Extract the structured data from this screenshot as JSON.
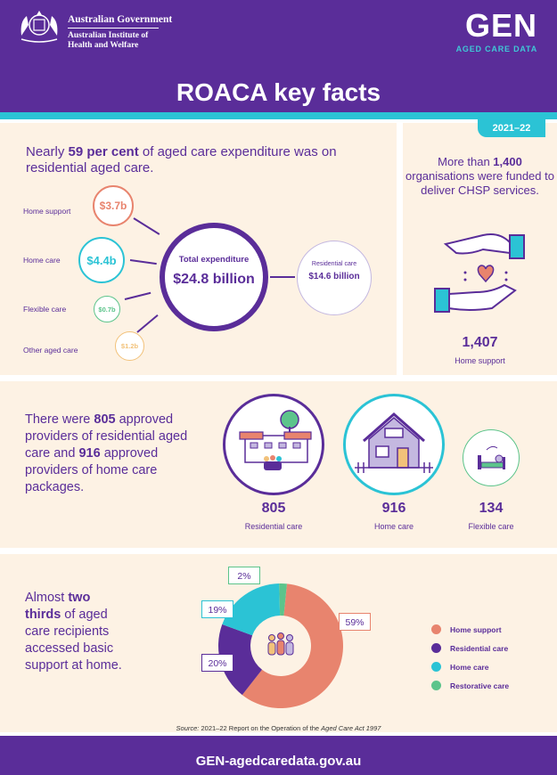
{
  "header": {
    "gov_line1": "Australian Government",
    "gov_line2": "Australian Institute of Health and Welfare",
    "logo": "GEN",
    "logo_sub": "AGED CARE DATA",
    "title": "ROACA key facts",
    "year": "2021–22"
  },
  "expenditure": {
    "intro_a": "Nearly ",
    "intro_b": "59 per cent",
    "intro_c": " of aged care expenditure was on residential aged care.",
    "items": [
      {
        "label": "Home support",
        "value": "$3.7b",
        "color": "#e8846e"
      },
      {
        "label": "Home care",
        "value": "$4.4b",
        "color": "#2bc3d5"
      },
      {
        "label": "Flexible care",
        "value": "$0.7b",
        "color": "#5cc48b"
      },
      {
        "label": "Other aged care",
        "value": "$1.2b",
        "color": "#f2c27a"
      }
    ],
    "total_label": "Total expenditure",
    "total_value": "$24.8 billion",
    "residential_label": "Residential care",
    "residential_value": "$14.6 billion"
  },
  "chsp": {
    "text_a": "More than ",
    "text_b": "1,400",
    "text_c": " organisations were funded to deliver CHSP services.",
    "number": "1,407",
    "label": "Home support"
  },
  "providers": {
    "text_a": "There were ",
    "text_b": "805",
    "text_c": " approved providers of residential aged care and ",
    "text_d": "916",
    "text_e": " approved providers of home care packages.",
    "stats": [
      {
        "number": "805",
        "label": "Residential care",
        "color": "#5a2d99"
      },
      {
        "number": "916",
        "label": "Home care",
        "color": "#2bc3d5"
      },
      {
        "number": "134",
        "label": "Flexible care",
        "color": "#5cc48b"
      }
    ]
  },
  "recipients": {
    "text_a": "Almost ",
    "text_b": "two thirds",
    "text_c": " of aged care recipients accessed basic support at home."
  },
  "chart_data": {
    "type": "pie",
    "categories": [
      "Home support",
      "Residential care",
      "Home care",
      "Restorative care"
    ],
    "values": [
      59,
      20,
      19,
      2
    ],
    "labels": [
      "59%",
      "20%",
      "19%",
      "2%"
    ],
    "colors": [
      "#e8846e",
      "#5a2d99",
      "#2bc3d5",
      "#5cc48b"
    ],
    "legend_position": "right"
  },
  "source": {
    "prefix": "Source:",
    "text": " 2021–22 Report on the Operation of the ",
    "act": "Aged Care Act 1997"
  },
  "footer": {
    "url": "GEN-agedcaredata.gov.au"
  }
}
